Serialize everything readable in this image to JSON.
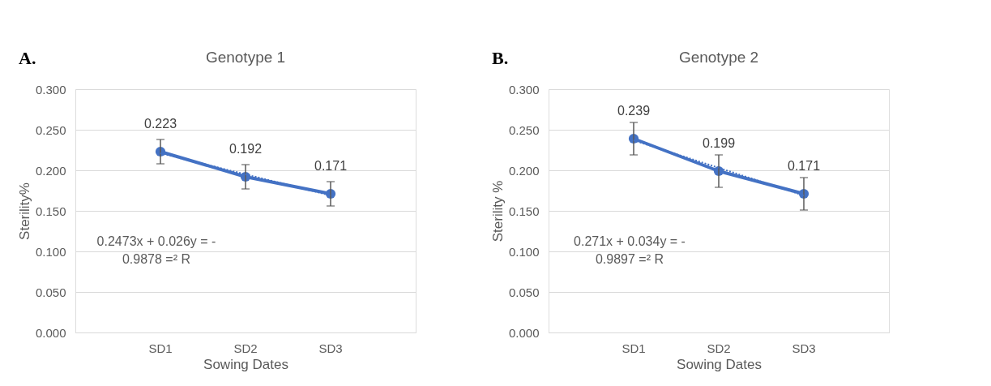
{
  "chart_data": [
    {
      "type": "line",
      "title": "Genotype 1",
      "xlabel": "Sowing Dates",
      "ylabel": "Sterility%",
      "categories": [
        "SD1",
        "SD2",
        "SD3"
      ],
      "series": [
        {
          "color": "#4472c4",
          "values": [
            0.223,
            0.192,
            0.171
          ],
          "errors": [
            0.015,
            0.015,
            0.015
          ],
          "line_style": "solid",
          "marker": "circle",
          "data_labels": true
        },
        {
          "type": "line",
          "color": "#4472c4",
          "values": [
            0.221,
            0.195,
            0.169
          ],
          "line_style": "dotted",
          "marker": "none"
        }
      ],
      "ylim": [
        0,
        0.3
      ],
      "yticks": [
        {
          "value": 0,
          "label": "0.000"
        },
        {
          "value": 0.05,
          "label": "0.050"
        },
        {
          "value": 0.1,
          "label": "0.100"
        },
        {
          "value": 0.15,
          "label": "0.150"
        },
        {
          "value": 0.2,
          "label": "0.200"
        },
        {
          "value": 0.25,
          "label": "0.250"
        },
        {
          "value": 0.3,
          "label": "0.300"
        }
      ],
      "grid": "y",
      "annotations": [
        "A.",
        "0.2473x + 0.026y = -\n0.9878 =² R"
      ]
    },
    {
      "type": "line",
      "title": "Genotype 2",
      "xlabel": "Sowing Dates",
      "ylabel": "Sterility %",
      "categories": [
        "SD1",
        "SD2",
        "SD3"
      ],
      "series": [
        {
          "color": "#4472c4",
          "values": [
            0.239,
            0.199,
            0.171
          ],
          "errors": [
            0.02,
            0.02,
            0.02
          ],
          "line_style": "solid",
          "marker": "circle",
          "data_labels": true
        },
        {
          "type": "line",
          "color": "#4472c4",
          "values": [
            0.237,
            0.203,
            0.169
          ],
          "line_style": "dotted",
          "marker": "none"
        }
      ],
      "ylim": [
        0,
        0.3
      ],
      "yticks": [
        {
          "value": 0,
          "label": "0.000"
        },
        {
          "value": 0.05,
          "label": "0.050"
        },
        {
          "value": 0.1,
          "label": "0.100"
        },
        {
          "value": 0.15,
          "label": "0.150"
        },
        {
          "value": 0.2,
          "label": "0.200"
        },
        {
          "value": 0.25,
          "label": "0.250"
        },
        {
          "value": 0.3,
          "label": "0.300"
        }
      ],
      "grid": "y",
      "annotations": [
        "B.",
        "0.271x + 0.034y = -\n0.9897 =² R"
      ]
    }
  ]
}
